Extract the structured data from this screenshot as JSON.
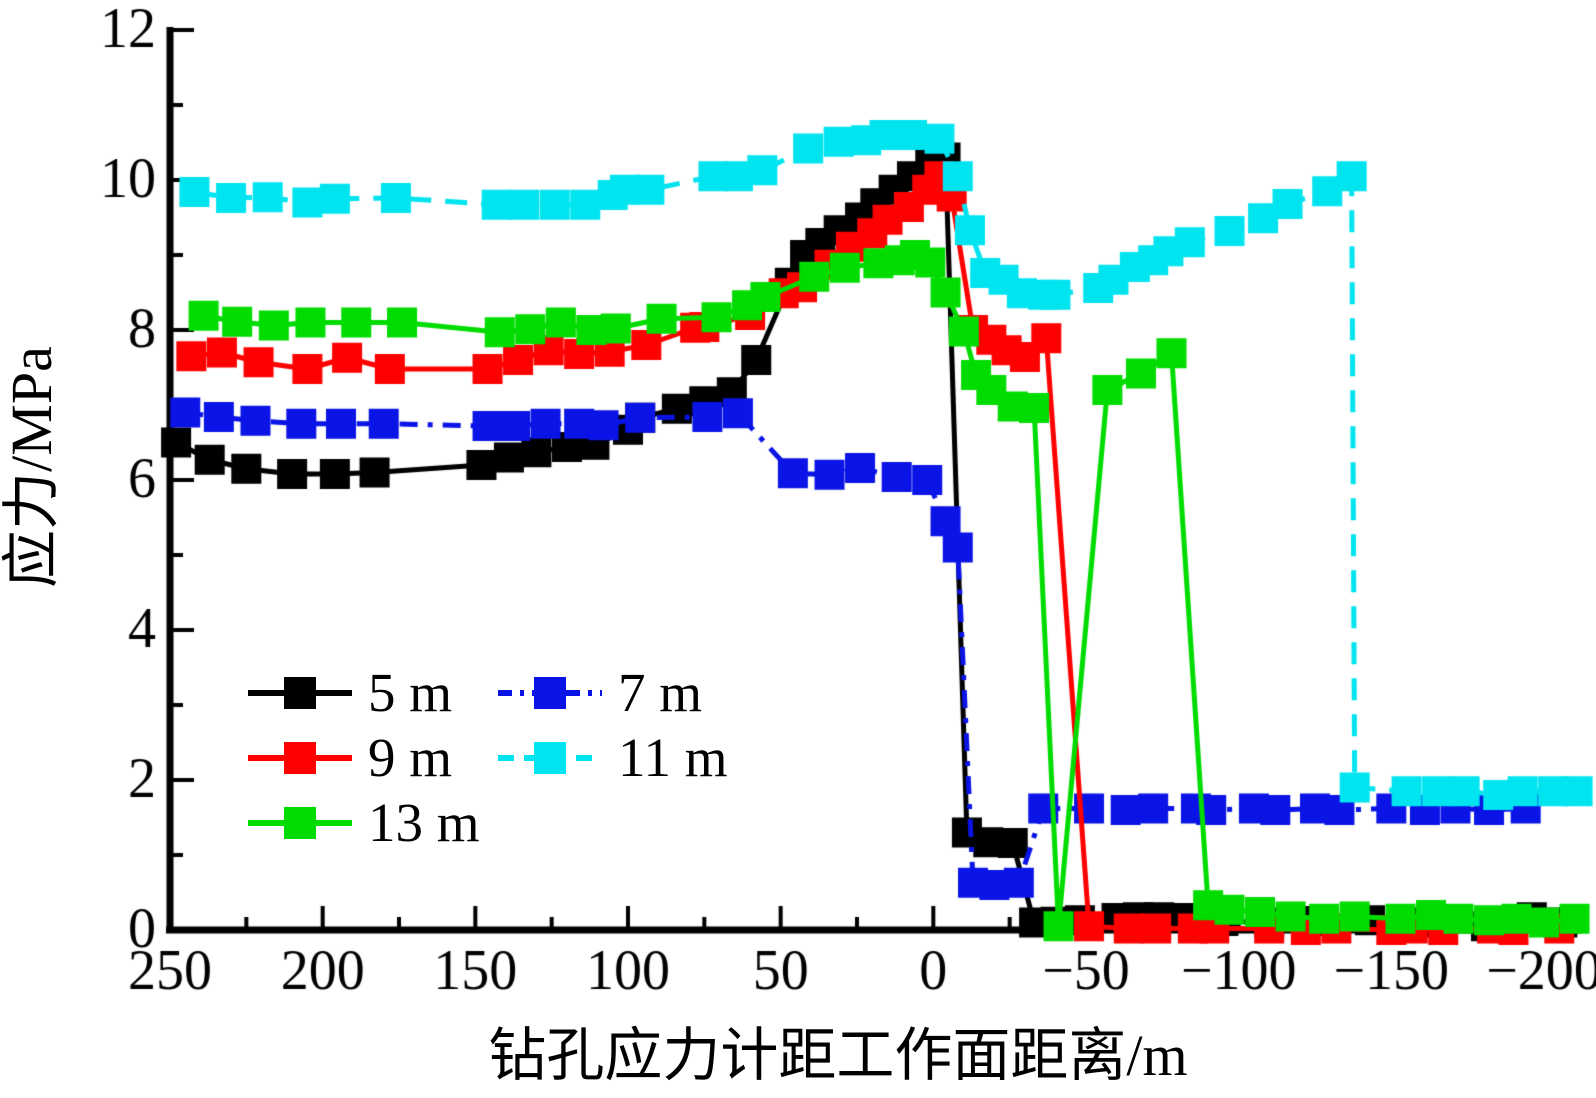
{
  "chart_data": {
    "type": "line",
    "title": "",
    "xlabel": "钻孔应力计距工作面距离/m",
    "ylabel": "应力/MPa",
    "x_axis": {
      "label": "钻孔应力计距工作面距离/m",
      "min": -200,
      "max": 250,
      "direction": "reversed",
      "minor_step": 25,
      "major_ticks": [
        {
          "v": 250,
          "label": "250"
        },
        {
          "v": 200,
          "label": "200"
        },
        {
          "v": 150,
          "label": "150"
        },
        {
          "v": 100,
          "label": "100"
        },
        {
          "v": 50,
          "label": "50"
        },
        {
          "v": 0,
          "label": "0"
        },
        {
          "v": -50,
          "label": "−50"
        },
        {
          "v": -100,
          "label": "−100"
        },
        {
          "v": -150,
          "label": "−150"
        },
        {
          "v": -200,
          "label": "−200"
        }
      ]
    },
    "y_axis": {
      "label": "应力/MPa",
      "min": 0,
      "max": 12,
      "minor_step": 1,
      "major_ticks": [
        {
          "v": 0,
          "label": "0"
        },
        {
          "v": 2,
          "label": "2"
        },
        {
          "v": 4,
          "label": "4"
        },
        {
          "v": 6,
          "label": "6"
        },
        {
          "v": 8,
          "label": "8"
        },
        {
          "v": 10,
          "label": "10"
        },
        {
          "v": 12,
          "label": "12"
        }
      ]
    },
    "legend": {
      "position": "lower-left",
      "columns": 2
    },
    "series": [
      {
        "name": "5 m",
        "color": "#000000",
        "line_style": "solid",
        "marker": "square",
        "points": [
          [
            248,
            6.5
          ],
          [
            237,
            6.27
          ],
          [
            225,
            6.15
          ],
          [
            210,
            6.08
          ],
          [
            196,
            6.08
          ],
          [
            183,
            6.1
          ],
          [
            148,
            6.2
          ],
          [
            139,
            6.3
          ],
          [
            130,
            6.37
          ],
          [
            120,
            6.44
          ],
          [
            111,
            6.47
          ],
          [
            100,
            6.67
          ],
          [
            96,
            6.83
          ],
          [
            84,
            6.95
          ],
          [
            75,
            7.05
          ],
          [
            66,
            7.17
          ],
          [
            58,
            7.6
          ],
          [
            47,
            8.63
          ],
          [
            42,
            9.0
          ],
          [
            37,
            9.16
          ],
          [
            31,
            9.33
          ],
          [
            24,
            9.5
          ],
          [
            19,
            9.69
          ],
          [
            13,
            9.87
          ],
          [
            7,
            10.05
          ],
          [
            1,
            10.23
          ],
          [
            -4,
            10.3
          ],
          [
            -11,
            1.3
          ],
          [
            -18,
            1.17
          ],
          [
            -26,
            1.16
          ],
          [
            -33,
            0.1
          ],
          [
            -40,
            0.11
          ],
          [
            -48,
            0.13
          ],
          [
            -60,
            0.16
          ],
          [
            -67,
            0.17
          ],
          [
            -74,
            0.17
          ],
          [
            -82,
            0.16
          ],
          [
            -95,
            0.12
          ],
          [
            -110,
            0.1
          ],
          [
            -125,
            0.12
          ],
          [
            -143,
            0.13
          ],
          [
            -160,
            0.1
          ],
          [
            -181,
            0.05
          ],
          [
            -196,
            0.17
          ],
          [
            -206,
            0.1
          ]
        ]
      },
      {
        "name": "7 m",
        "color": "#0a14e6",
        "line_style": "dash-dot",
        "marker": "square",
        "points": [
          [
            245,
            6.9
          ],
          [
            234,
            6.84
          ],
          [
            222,
            6.79
          ],
          [
            207,
            6.75
          ],
          [
            194,
            6.75
          ],
          [
            180,
            6.75
          ],
          [
            146,
            6.72
          ],
          [
            137,
            6.72
          ],
          [
            127,
            6.75
          ],
          [
            116,
            6.75
          ],
          [
            108,
            6.73
          ],
          [
            96,
            6.83
          ],
          [
            74,
            6.84
          ],
          [
            64,
            6.89
          ],
          [
            46,
            6.09
          ],
          [
            34,
            6.07
          ],
          [
            24,
            6.16
          ],
          [
            12,
            6.04
          ],
          [
            2,
            6.0
          ],
          [
            -4,
            5.45
          ],
          [
            -8,
            5.1
          ],
          [
            -13,
            0.63
          ],
          [
            -20,
            0.6
          ],
          [
            -28,
            0.63
          ],
          [
            -36,
            1.62
          ],
          [
            -51,
            1.62
          ],
          [
            -63,
            1.6
          ],
          [
            -72,
            1.62
          ],
          [
            -86,
            1.62
          ],
          [
            -91,
            1.6
          ],
          [
            -105,
            1.62
          ],
          [
            -112,
            1.6
          ],
          [
            -125,
            1.62
          ],
          [
            -133,
            1.6
          ],
          [
            -150,
            1.62
          ],
          [
            -161,
            1.6
          ],
          [
            -171,
            1.62
          ],
          [
            -182,
            1.6
          ],
          [
            -194,
            1.62
          ]
        ]
      },
      {
        "name": "9 m",
        "color": "#ff0000",
        "line_style": "solid",
        "marker": "square",
        "points": [
          [
            243,
            7.65
          ],
          [
            233,
            7.7
          ],
          [
            221,
            7.57
          ],
          [
            205,
            7.48
          ],
          [
            192,
            7.63
          ],
          [
            178,
            7.48
          ],
          [
            146,
            7.48
          ],
          [
            136,
            7.6
          ],
          [
            126,
            7.73
          ],
          [
            116,
            7.68
          ],
          [
            106,
            7.71
          ],
          [
            94,
            7.8
          ],
          [
            78,
            8.03
          ],
          [
            75,
            8.04
          ],
          [
            60,
            8.2
          ],
          [
            49,
            8.49
          ],
          [
            43,
            8.57
          ],
          [
            34,
            8.87
          ],
          [
            27,
            9.11
          ],
          [
            20,
            9.29
          ],
          [
            15,
            9.47
          ],
          [
            8,
            9.64
          ],
          [
            2,
            9.87
          ],
          [
            -2,
            10.05
          ],
          [
            -6,
            9.78
          ],
          [
            -13,
            8.0
          ],
          [
            -19,
            7.87
          ],
          [
            -24,
            7.73
          ],
          [
            -30,
            7.64
          ],
          [
            -37,
            7.89
          ],
          [
            -51,
            0.05
          ],
          [
            -64,
            0.02
          ],
          [
            -73,
            0.02
          ],
          [
            -85,
            0.02
          ],
          [
            -92,
            0.02
          ],
          [
            -110,
            0.02
          ],
          [
            -122,
            0.0
          ],
          [
            -132,
            0.02
          ],
          [
            -150,
            0.0
          ],
          [
            -157,
            0.02
          ],
          [
            -167,
            0.0
          ],
          [
            -183,
            0.02
          ],
          [
            -190,
            0.0
          ],
          [
            -205,
            0.02
          ]
        ]
      },
      {
        "name": "11 m",
        "color": "#00e4f0",
        "line_style": "dashed",
        "marker": "square",
        "points": [
          [
            242,
            9.84
          ],
          [
            230,
            9.76
          ],
          [
            218,
            9.77
          ],
          [
            205,
            9.7
          ],
          [
            196,
            9.75
          ],
          [
            176,
            9.76
          ],
          [
            143,
            9.67
          ],
          [
            134,
            9.67
          ],
          [
            124,
            9.67
          ],
          [
            114,
            9.67
          ],
          [
            105,
            9.8
          ],
          [
            101,
            9.87
          ],
          [
            93,
            9.87
          ],
          [
            72,
            10.05
          ],
          [
            64,
            10.05
          ],
          [
            56,
            10.13
          ],
          [
            41,
            10.42
          ],
          [
            31,
            10.51
          ],
          [
            22,
            10.53
          ],
          [
            16,
            10.6
          ],
          [
            7,
            10.6
          ],
          [
            -2,
            10.55
          ],
          [
            -8,
            10.05
          ],
          [
            -12,
            9.33
          ],
          [
            -17,
            8.76
          ],
          [
            -23,
            8.67
          ],
          [
            -29,
            8.49
          ],
          [
            -36,
            8.47
          ],
          [
            -40,
            8.47
          ],
          [
            -54,
            8.56
          ],
          [
            -59,
            8.67
          ],
          [
            -66,
            8.84
          ],
          [
            -72,
            8.93
          ],
          [
            -77,
            9.05
          ],
          [
            -84,
            9.17
          ],
          [
            -97,
            9.32
          ],
          [
            -108,
            9.49
          ],
          [
            -116,
            9.68
          ],
          [
            -129,
            9.85
          ],
          [
            -137,
            10.05
          ],
          [
            -138,
            1.9
          ],
          [
            -155,
            1.85
          ],
          [
            -165,
            1.85
          ],
          [
            -174,
            1.85
          ],
          [
            -185,
            1.8
          ],
          [
            -193,
            1.85
          ],
          [
            -203,
            1.85
          ],
          [
            -211,
            1.85
          ]
        ]
      },
      {
        "name": "13 m",
        "color": "#00dc00",
        "line_style": "solid",
        "marker": "square",
        "points": [
          [
            239,
            8.19
          ],
          [
            228,
            8.11
          ],
          [
            216,
            8.06
          ],
          [
            204,
            8.1
          ],
          [
            189,
            8.1
          ],
          [
            174,
            8.1
          ],
          [
            142,
            7.97
          ],
          [
            132,
            8.01
          ],
          [
            122,
            8.1
          ],
          [
            112,
            8.0
          ],
          [
            104,
            8.02
          ],
          [
            89,
            8.15
          ],
          [
            71,
            8.17
          ],
          [
            61,
            8.33
          ],
          [
            55,
            8.44
          ],
          [
            39,
            8.71
          ],
          [
            29,
            8.83
          ],
          [
            18,
            8.89
          ],
          [
            11,
            8.93
          ],
          [
            6,
            9.0
          ],
          [
            1,
            8.9
          ],
          [
            -4,
            8.5
          ],
          [
            -10,
            7.98
          ],
          [
            -14,
            7.4
          ],
          [
            -19,
            7.2
          ],
          [
            -26,
            6.98
          ],
          [
            -33,
            6.96
          ],
          [
            -41,
            0.05
          ],
          [
            -57,
            7.2
          ],
          [
            -68,
            7.42
          ],
          [
            -78,
            7.69
          ],
          [
            -90,
            0.33
          ],
          [
            -97,
            0.27
          ],
          [
            -107,
            0.24
          ],
          [
            -117,
            0.18
          ],
          [
            -128,
            0.15
          ],
          [
            -138,
            0.18
          ],
          [
            -153,
            0.15
          ],
          [
            -163,
            0.2
          ],
          [
            -172,
            0.15
          ],
          [
            -182,
            0.13
          ],
          [
            -191,
            0.15
          ],
          [
            -200,
            0.1
          ],
          [
            -210,
            0.15
          ]
        ]
      }
    ]
  }
}
